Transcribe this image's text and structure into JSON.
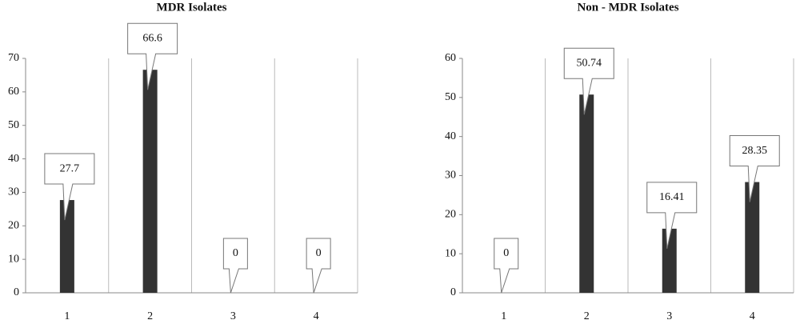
{
  "chart_data": [
    {
      "type": "bar",
      "title": "MDR Isolates",
      "categories": [
        "1",
        "2",
        "3",
        "4"
      ],
      "values": [
        27.7,
        66.6,
        0,
        0
      ],
      "color": "#333333",
      "ylim": [
        0,
        70
      ],
      "yticks": [
        0,
        10,
        20,
        30,
        40,
        50,
        60,
        70
      ]
    },
    {
      "type": "bar",
      "title": "Non - MDR Isolates",
      "categories": [
        "1",
        "2",
        "3",
        "4"
      ],
      "values": [
        0,
        50.74,
        16.41,
        28.35
      ],
      "color": "#333333",
      "ylim": [
        0,
        60
      ],
      "yticks": [
        0,
        10,
        20,
        30,
        40,
        50,
        60
      ]
    }
  ]
}
